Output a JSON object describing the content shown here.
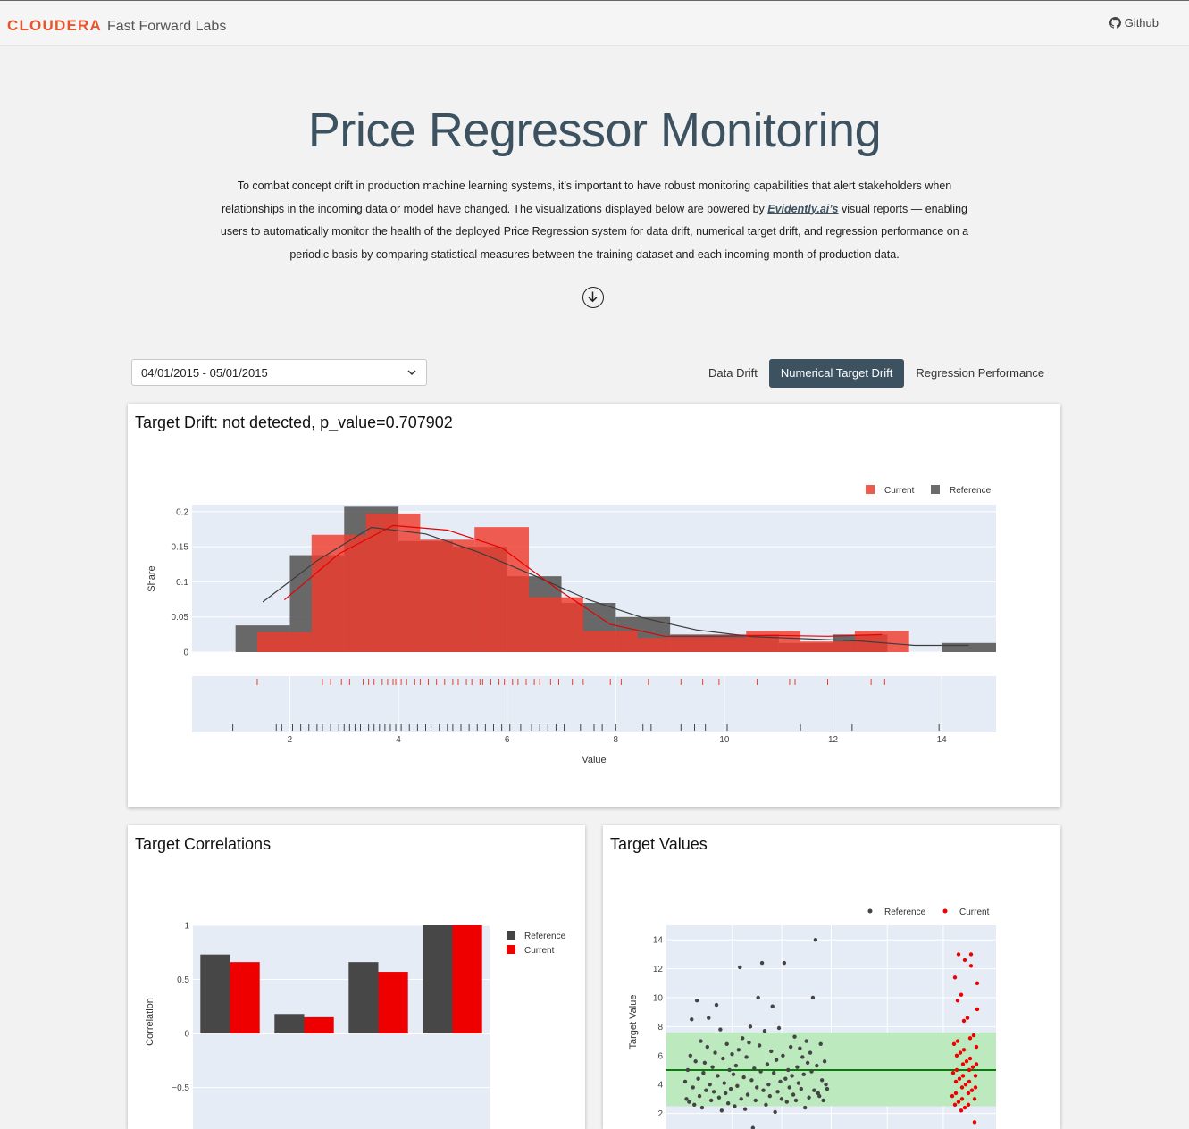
{
  "brand": {
    "name": "CLOUDERA",
    "sub": "Fast Forward Labs"
  },
  "nav": {
    "github_label": "Github"
  },
  "hero": {
    "title": "Price Regressor Monitoring",
    "intro_part1": "To combat concept drift in production machine learning systems, it’s important to have robust monitoring capabilities that alert stakeholders when relationships in the incoming data or model have changed. The visualizations displayed below are powered by ",
    "intro_link": "Evidently.ai’s",
    "intro_part2": " visual reports — enabling users to automatically monitor the health of the deployed Price Regression system for data drift, numerical target drift, and regression performance on a periodic basis by comparing statistical measures between the training dataset and each incoming month of production data."
  },
  "controls": {
    "date_range": "04/01/2015 - 05/01/2015",
    "tabs": [
      {
        "label": "Data Drift",
        "active": false
      },
      {
        "label": "Numerical Target Drift",
        "active": true
      },
      {
        "label": "Regression Performance",
        "active": false
      }
    ]
  },
  "colors": {
    "current": "#ef3b2c",
    "reference": "#6b6b6b",
    "accent": "#3c5261"
  },
  "cards": {
    "drift_title": "Target Drift: not detected, p_value=0.707902",
    "corr_title": "Target Correlations",
    "values_title": "Target Values"
  },
  "chart_data": [
    {
      "type": "bar",
      "legend": [
        "Current",
        "Reference"
      ],
      "ylabel": "Share",
      "xlabel": "Value",
      "yticks": [
        "0",
        "0.05",
        "0.1",
        "0.15",
        "0.2"
      ],
      "xticks": [
        "2",
        "4",
        "6",
        "8",
        "10",
        "12",
        "14"
      ],
      "xlim": [
        0.2,
        15
      ],
      "ylim": [
        0,
        0.21
      ],
      "series": [
        {
          "name": "Reference",
          "bin_edges": [
            1.0,
            2.0,
            3.0,
            4.0,
            5.0,
            6.0,
            7.0,
            8.0,
            9.0,
            10.0,
            11.0,
            12.0,
            13.0,
            14.0,
            15.0
          ],
          "values": [
            0.038,
            0.138,
            0.207,
            0.158,
            0.15,
            0.108,
            0.07,
            0.05,
            0.025,
            0.025,
            0.013,
            0.025,
            0.0,
            0.013,
            0.012
          ]
        },
        {
          "name": "Current",
          "bin_edges": [
            1.4,
            2.4,
            3.4,
            4.4,
            5.4,
            6.4,
            7.4,
            8.4,
            9.4,
            10.4,
            11.4,
            12.4,
            13.4
          ],
          "values": [
            0.028,
            0.167,
            0.197,
            0.16,
            0.178,
            0.078,
            0.03,
            0.02,
            0.02,
            0.03,
            0.015,
            0.03
          ]
        }
      ],
      "rug_current": [
        1.4,
        2.6,
        2.75,
        2.95,
        3.1,
        3.35,
        3.45,
        3.55,
        3.7,
        3.8,
        3.9,
        3.95,
        4.05,
        4.15,
        4.3,
        4.4,
        4.55,
        4.7,
        4.85,
        5.0,
        5.1,
        5.25,
        5.35,
        5.5,
        5.55,
        5.7,
        5.85,
        5.95,
        6.1,
        6.2,
        6.35,
        6.5,
        6.6,
        6.8,
        6.95,
        7.2,
        7.4,
        7.9,
        8.1,
        8.6,
        9.2,
        9.6,
        9.9,
        10.6,
        11.2,
        11.3,
        11.9,
        12.7,
        12.95
      ],
      "rug_reference": [
        0.95,
        1.75,
        1.85,
        2.05,
        2.2,
        2.35,
        2.5,
        2.6,
        2.75,
        2.9,
        3.0,
        3.1,
        3.2,
        3.3,
        3.45,
        3.55,
        3.65,
        3.75,
        3.85,
        3.95,
        4.05,
        4.2,
        4.35,
        4.5,
        4.6,
        4.75,
        4.9,
        5.0,
        5.15,
        5.3,
        5.45,
        5.6,
        5.75,
        5.9,
        6.05,
        6.25,
        6.45,
        6.6,
        6.75,
        6.9,
        7.05,
        7.35,
        7.6,
        7.75,
        8.0,
        8.5,
        8.65,
        9.2,
        9.45,
        9.65,
        10.05,
        11.4,
        12.35,
        13.95
      ]
    },
    {
      "type": "bar",
      "ylabel": "Correlation",
      "legend": [
        "Reference",
        "Current"
      ],
      "yticks": [
        "1",
        "0.5",
        "0",
        "−0.5"
      ],
      "ylim": [
        -0.9,
        1.0
      ],
      "series": [
        {
          "name": "Reference",
          "values": [
            0.73,
            0.18,
            0.66,
            1.0
          ]
        },
        {
          "name": "Current",
          "values": [
            0.66,
            0.15,
            0.57,
            1.0
          ]
        }
      ]
    },
    {
      "type": "scatter",
      "ylabel": "Target Value",
      "legend": [
        "Reference",
        "Current"
      ],
      "yticks": [
        "14",
        "12",
        "10",
        "8",
        "6",
        "4",
        "2"
      ],
      "ylim": [
        0.8,
        15
      ],
      "mean": 5.0,
      "band": [
        2.5,
        7.6
      ],
      "series": [
        {
          "name": "Reference",
          "points": [
            [
              1,
              4.2
            ],
            [
              2,
              3.0
            ],
            [
              3,
              5.0
            ],
            [
              4,
              2.8
            ],
            [
              5,
              6.0
            ],
            [
              6,
              8.5
            ],
            [
              7,
              3.8
            ],
            [
              8,
              2.6
            ],
            [
              9,
              5.6
            ],
            [
              10,
              9.8
            ],
            [
              11,
              4.4
            ],
            [
              12,
              3.2
            ],
            [
              13,
              7.0
            ],
            [
              14,
              2.4
            ],
            [
              15,
              4.8
            ],
            [
              16,
              5.5
            ],
            [
              17,
              3.6
            ],
            [
              18,
              6.6
            ],
            [
              19,
              8.6
            ],
            [
              20,
              4.0
            ],
            [
              21,
              2.9
            ],
            [
              22,
              5.2
            ],
            [
              23,
              3.5
            ],
            [
              24,
              6.2
            ],
            [
              25,
              9.5
            ],
            [
              26,
              4.6
            ],
            [
              27,
              3.1
            ],
            [
              28,
              7.8
            ],
            [
              29,
              2.2
            ],
            [
              30,
              5.8
            ],
            [
              31,
              4.1
            ],
            [
              32,
              3.4
            ],
            [
              33,
              6.8
            ],
            [
              34,
              2.7
            ],
            [
              35,
              5.0
            ],
            [
              36,
              3.7
            ],
            [
              37,
              6.1
            ],
            [
              38,
              4.7
            ],
            [
              39,
              2.5
            ],
            [
              40,
              5.3
            ],
            [
              41,
              3.9
            ],
            [
              42,
              6.4
            ],
            [
              43,
              12.1
            ],
            [
              44,
              3.0
            ],
            [
              45,
              7.2
            ],
            [
              46,
              4.5
            ],
            [
              47,
              2.3
            ],
            [
              48,
              5.9
            ],
            [
              49,
              3.3
            ],
            [
              50,
              6.9
            ],
            [
              51,
              8.0
            ],
            [
              52,
              4.3
            ],
            [
              53,
              1.0
            ],
            [
              54,
              5.1
            ],
            [
              55,
              2.9
            ],
            [
              56,
              3.8
            ],
            [
              57,
              10.0
            ],
            [
              58,
              6.7
            ],
            [
              59,
              4.9
            ],
            [
              60,
              12.4
            ],
            [
              61,
              3.6
            ],
            [
              62,
              7.7
            ],
            [
              63,
              2.6
            ],
            [
              64,
              5.4
            ],
            [
              65,
              4.0
            ],
            [
              66,
              3.2
            ],
            [
              67,
              6.3
            ],
            [
              68,
              9.4
            ],
            [
              69,
              4.8
            ],
            [
              70,
              2.1
            ],
            [
              71,
              5.7
            ],
            [
              72,
              3.5
            ],
            [
              73,
              7.9
            ],
            [
              74,
              4.2
            ],
            [
              75,
              3.0
            ],
            [
              76,
              6.0
            ],
            [
              77,
              12.4
            ],
            [
              78,
              4.4
            ],
            [
              79,
              2.8
            ],
            [
              80,
              5.0
            ],
            [
              81,
              3.8
            ],
            [
              82,
              6.6
            ],
            [
              83,
              4.6
            ],
            [
              84,
              3.3
            ],
            [
              85,
              7.3
            ],
            [
              86,
              2.9
            ],
            [
              87,
              5.2
            ],
            [
              88,
              4.1
            ],
            [
              89,
              6.5
            ],
            [
              90,
              3.7
            ],
            [
              91,
              5.9
            ],
            [
              92,
              4.7
            ],
            [
              93,
              2.4
            ],
            [
              94,
              7.0
            ],
            [
              95,
              5.5
            ],
            [
              96,
              3.1
            ],
            [
              97,
              6.2
            ],
            [
              98,
              4.9
            ],
            [
              99,
              10.0
            ],
            [
              100,
              3.6
            ],
            [
              101,
              14.0
            ],
            [
              102,
              5.3
            ],
            [
              103,
              3.4
            ],
            [
              104,
              3.2
            ],
            [
              105,
              6.8
            ],
            [
              106,
              4.3
            ],
            [
              107,
              2.9
            ],
            [
              108,
              5.6
            ],
            [
              109,
              4.0
            ],
            [
              110,
              3.7
            ]
          ]
        },
        {
          "name": "Current",
          "points": [
            [
              1,
              13.0
            ],
            [
              2,
              12.6
            ],
            [
              3,
              12.2
            ],
            [
              4,
              9.2
            ],
            [
              5,
              7.0
            ],
            [
              6,
              6.4
            ],
            [
              7,
              5.8
            ],
            [
              8,
              5.4
            ],
            [
              9,
              5.0
            ],
            [
              10,
              4.6
            ],
            [
              11,
              4.2
            ],
            [
              12,
              3.8
            ],
            [
              13,
              3.4
            ],
            [
              14,
              3.0
            ],
            [
              15,
              2.6
            ],
            [
              16,
              1.4
            ],
            [
              17,
              11.4
            ],
            [
              18,
              10.2
            ],
            [
              19,
              8.6
            ],
            [
              20,
              7.4
            ],
            [
              21,
              6.8
            ],
            [
              22,
              6.2
            ],
            [
              23,
              5.6
            ],
            [
              24,
              5.2
            ],
            [
              25,
              4.8
            ],
            [
              26,
              4.4
            ],
            [
              27,
              4.0
            ],
            [
              28,
              3.6
            ],
            [
              29,
              3.2
            ],
            [
              30,
              2.8
            ],
            [
              31,
              2.4
            ],
            [
              32,
              13.0
            ],
            [
              33,
              11.0
            ],
            [
              34,
              9.8
            ],
            [
              35,
              8.4
            ],
            [
              36,
              7.2
            ],
            [
              37,
              6.6
            ],
            [
              38,
              6.0
            ],
            [
              39,
              5.4
            ],
            [
              40,
              5.0
            ],
            [
              41,
              4.6
            ],
            [
              42,
              4.2
            ],
            [
              43,
              3.8
            ],
            [
              44,
              3.4
            ],
            [
              45,
              3.0
            ],
            [
              46,
              2.6
            ],
            [
              47,
              2.2
            ]
          ]
        }
      ]
    }
  ]
}
